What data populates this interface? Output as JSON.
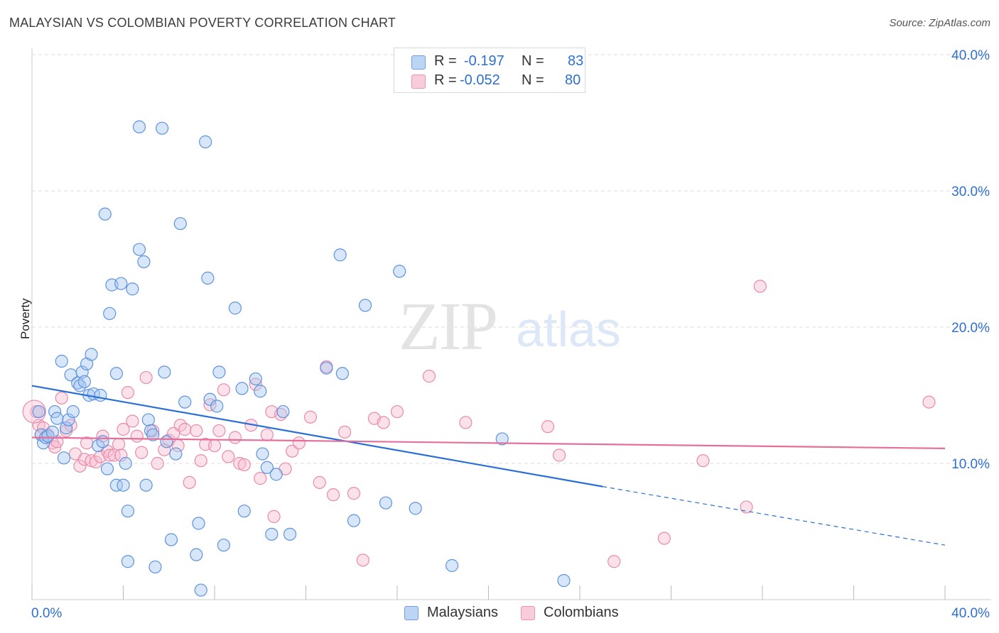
{
  "title": "MALAYSIAN VS COLOMBIAN POVERTY CORRELATION CHART",
  "source": "Source: ZipAtlas.com",
  "watermark": {
    "zip": "ZIP",
    "atlas": "atlas"
  },
  "colors": {
    "blue_fill": "#a9c8f2",
    "blue_stroke": "#5e93de",
    "blue_line": "#2a6fd6",
    "pink_fill": "#f7bfd1",
    "pink_stroke": "#e98aab",
    "pink_line": "#e56f9b",
    "value_text": "#2e6fd1",
    "grid": "#dddddd"
  },
  "legend": {
    "rows": [
      {
        "r_label": "R =",
        "r_value": "-0.197",
        "n_label": "N =",
        "n_value": "83"
      },
      {
        "r_label": "R =",
        "r_value": "-0.052",
        "n_label": "N =",
        "n_value": "80"
      }
    ]
  },
  "bottom_legend": [
    "Malaysians",
    "Colombians"
  ],
  "chart_data": {
    "type": "scatter",
    "xlabel": "",
    "ylabel": "Poverty",
    "xlim": [
      0,
      40
    ],
    "ylim": [
      0,
      40
    ],
    "x_tick_labels": [
      "0.0%",
      "40.0%"
    ],
    "y_ticks": [
      10,
      20,
      30,
      40
    ],
    "y_tick_labels": [
      "10.0%",
      "20.0%",
      "30.0%",
      "40.0%"
    ],
    "grid": true,
    "legend_position": "top-center",
    "series": [
      {
        "name": "Malaysians",
        "color": "#a9c8f2",
        "trend": {
          "x0": 0,
          "y0": 15.7,
          "x1": 25,
          "y1": 8.3,
          "dash_to_x": 40,
          "dash_to_y": 4.0
        },
        "points": [
          [
            0.3,
            13.8
          ],
          [
            0.4,
            12.1
          ],
          [
            0.5,
            11.5
          ],
          [
            0.6,
            11.9
          ],
          [
            0.7,
            12.0
          ],
          [
            0.9,
            12.3
          ],
          [
            1.0,
            13.8
          ],
          [
            1.1,
            13.3
          ],
          [
            1.3,
            17.5
          ],
          [
            1.4,
            10.4
          ],
          [
            1.5,
            12.6
          ],
          [
            1.6,
            13.2
          ],
          [
            1.7,
            16.5
          ],
          [
            1.8,
            13.8
          ],
          [
            2.0,
            15.9
          ],
          [
            2.1,
            15.7
          ],
          [
            2.2,
            16.7
          ],
          [
            2.4,
            17.3
          ],
          [
            2.5,
            15.0
          ],
          [
            2.6,
            18.0
          ],
          [
            2.7,
            15.1
          ],
          [
            2.9,
            11.3
          ],
          [
            3.0,
            15.0
          ],
          [
            3.1,
            11.6
          ],
          [
            3.2,
            28.3
          ],
          [
            3.3,
            9.6
          ],
          [
            3.4,
            21.0
          ],
          [
            3.5,
            23.1
          ],
          [
            3.7,
            8.4
          ],
          [
            3.7,
            16.6
          ],
          [
            3.9,
            23.2
          ],
          [
            4.0,
            8.4
          ],
          [
            4.1,
            10.0
          ],
          [
            4.2,
            6.5
          ],
          [
            4.2,
            2.8
          ],
          [
            4.4,
            22.8
          ],
          [
            4.7,
            34.7
          ],
          [
            4.7,
            25.7
          ],
          [
            4.9,
            24.8
          ],
          [
            5.0,
            8.4
          ],
          [
            5.1,
            13.2
          ],
          [
            5.2,
            12.4
          ],
          [
            5.3,
            12.1
          ],
          [
            5.4,
            2.4
          ],
          [
            5.7,
            34.6
          ],
          [
            5.8,
            16.7
          ],
          [
            5.9,
            11.6
          ],
          [
            6.1,
            4.4
          ],
          [
            6.3,
            10.7
          ],
          [
            6.5,
            27.6
          ],
          [
            7.2,
            3.3
          ],
          [
            7.3,
            5.6
          ],
          [
            7.4,
            0.7
          ],
          [
            7.6,
            33.6
          ],
          [
            7.7,
            23.6
          ],
          [
            7.8,
            14.7
          ],
          [
            8.1,
            14.2
          ],
          [
            8.2,
            16.7
          ],
          [
            8.4,
            4.0
          ],
          [
            8.9,
            21.4
          ],
          [
            9.2,
            15.5
          ],
          [
            9.3,
            6.5
          ],
          [
            10.0,
            15.3
          ],
          [
            10.1,
            10.7
          ],
          [
            10.3,
            9.7
          ],
          [
            10.5,
            4.8
          ],
          [
            10.7,
            9.2
          ],
          [
            11.0,
            13.8
          ],
          [
            11.3,
            4.8
          ],
          [
            12.9,
            17.0
          ],
          [
            13.5,
            25.3
          ],
          [
            13.6,
            16.6
          ],
          [
            14.1,
            5.8
          ],
          [
            14.6,
            21.6
          ],
          [
            15.5,
            7.1
          ],
          [
            16.1,
            24.1
          ],
          [
            16.8,
            6.7
          ],
          [
            18.4,
            2.5
          ],
          [
            20.6,
            11.8
          ],
          [
            23.3,
            1.4
          ],
          [
            2.3,
            16.0
          ],
          [
            6.7,
            14.5
          ],
          [
            9.8,
            16.2
          ]
        ]
      },
      {
        "name": "Colombians",
        "color": "#f7bfd1",
        "trend": {
          "x0": 0,
          "y0": 11.9,
          "x1": 40,
          "y1": 11.1
        },
        "points": [
          [
            0.2,
            13.8
          ],
          [
            0.3,
            12.8
          ],
          [
            0.4,
            12.1
          ],
          [
            0.5,
            12.6
          ],
          [
            0.7,
            12.1
          ],
          [
            0.9,
            11.5
          ],
          [
            1.0,
            11.2
          ],
          [
            1.1,
            11.6
          ],
          [
            1.3,
            14.8
          ],
          [
            1.5,
            12.4
          ],
          [
            1.7,
            12.8
          ],
          [
            1.9,
            10.7
          ],
          [
            2.1,
            9.8
          ],
          [
            2.3,
            10.3
          ],
          [
            2.4,
            11.5
          ],
          [
            2.6,
            10.2
          ],
          [
            2.8,
            10.1
          ],
          [
            3.0,
            10.5
          ],
          [
            3.1,
            12.0
          ],
          [
            3.3,
            10.9
          ],
          [
            3.4,
            10.6
          ],
          [
            3.6,
            10.6
          ],
          [
            3.8,
            11.4
          ],
          [
            3.9,
            10.6
          ],
          [
            4.0,
            12.5
          ],
          [
            4.2,
            15.2
          ],
          [
            4.4,
            13.1
          ],
          [
            4.6,
            12.0
          ],
          [
            4.8,
            10.8
          ],
          [
            5.0,
            16.3
          ],
          [
            5.3,
            12.4
          ],
          [
            5.5,
            10.0
          ],
          [
            5.8,
            11.0
          ],
          [
            6.0,
            11.7
          ],
          [
            6.2,
            12.2
          ],
          [
            6.4,
            11.3
          ],
          [
            6.5,
            12.8
          ],
          [
            6.7,
            12.5
          ],
          [
            6.9,
            8.6
          ],
          [
            7.2,
            12.4
          ],
          [
            7.4,
            10.2
          ],
          [
            7.6,
            11.4
          ],
          [
            7.8,
            14.3
          ],
          [
            8.0,
            11.3
          ],
          [
            8.2,
            12.4
          ],
          [
            8.4,
            15.4
          ],
          [
            8.6,
            10.5
          ],
          [
            8.9,
            11.9
          ],
          [
            9.1,
            10.0
          ],
          [
            9.3,
            9.9
          ],
          [
            9.6,
            12.8
          ],
          [
            9.8,
            15.8
          ],
          [
            10.0,
            8.9
          ],
          [
            10.3,
            12.1
          ],
          [
            10.5,
            13.8
          ],
          [
            10.9,
            13.6
          ],
          [
            11.1,
            9.6
          ],
          [
            11.4,
            10.9
          ],
          [
            11.7,
            11.5
          ],
          [
            12.2,
            13.4
          ],
          [
            12.6,
            8.6
          ],
          [
            12.9,
            17.1
          ],
          [
            13.2,
            7.7
          ],
          [
            13.7,
            12.3
          ],
          [
            14.1,
            7.8
          ],
          [
            14.5,
            2.9
          ],
          [
            15.0,
            13.3
          ],
          [
            15.4,
            13.0
          ],
          [
            16.0,
            13.8
          ],
          [
            17.4,
            16.4
          ],
          [
            19.0,
            13.0
          ],
          [
            22.6,
            12.7
          ],
          [
            23.1,
            10.6
          ],
          [
            25.5,
            2.8
          ],
          [
            27.7,
            4.5
          ],
          [
            29.4,
            10.2
          ],
          [
            31.3,
            6.8
          ],
          [
            31.9,
            23.0
          ],
          [
            39.3,
            14.5
          ],
          [
            10.6,
            6.1
          ]
        ]
      }
    ]
  }
}
